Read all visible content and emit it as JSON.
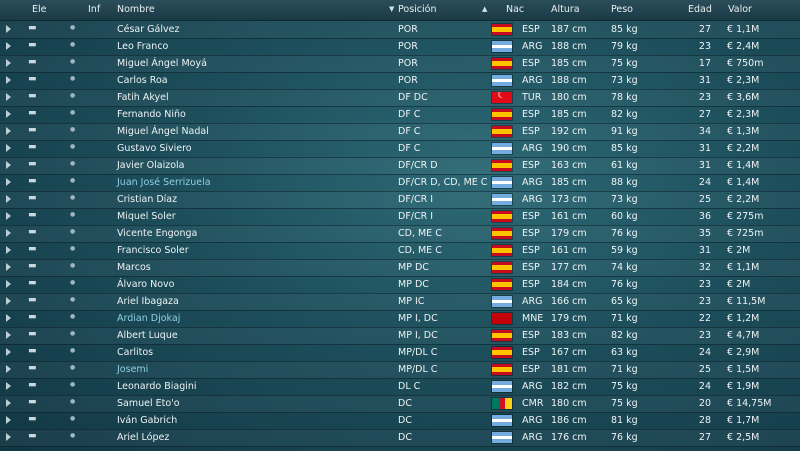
{
  "columns": {
    "ele": "Ele",
    "inf": "Inf",
    "nombre": "Nombre",
    "posicion": "Posición",
    "nac": "Nac",
    "altura": "Altura",
    "peso": "Peso",
    "edad": "Edad",
    "valor": "Valor"
  },
  "flag_colors": {
    "ESP": [
      "#c60b1e",
      "#ffc400",
      "#c60b1e"
    ],
    "ARG": [
      "#74acdf",
      "#ffffff",
      "#74acdf"
    ],
    "TUR": [
      "#e30a17"
    ],
    "MNE": [
      "#c40308"
    ],
    "CMR": [
      "#007a5e",
      "#ce1126",
      "#fcd116"
    ]
  },
  "players": [
    {
      "name": "César Gálvez",
      "pos": "POR",
      "nat": "ESP",
      "height": "187 cm",
      "weight": "85 kg",
      "age": "27",
      "value": "€ 1,1M",
      "highlight": false
    },
    {
      "name": "Leo Franco",
      "pos": "POR",
      "nat": "ARG",
      "height": "188 cm",
      "weight": "79 kg",
      "age": "23",
      "value": "€ 2,4M",
      "highlight": false
    },
    {
      "name": "Miguel Ángel Moyá",
      "pos": "POR",
      "nat": "ESP",
      "height": "185 cm",
      "weight": "75 kg",
      "age": "17",
      "value": "€ 750m",
      "highlight": false
    },
    {
      "name": "Carlos Roa",
      "pos": "POR",
      "nat": "ARG",
      "height": "188 cm",
      "weight": "73 kg",
      "age": "31",
      "value": "€ 2,3M",
      "highlight": false
    },
    {
      "name": "Fatih Akyel",
      "pos": "DF DC",
      "nat": "TUR",
      "height": "180 cm",
      "weight": "78 kg",
      "age": "23",
      "value": "€ 3,6M",
      "highlight": false
    },
    {
      "name": "Fernando Niño",
      "pos": "DF C",
      "nat": "ESP",
      "height": "185 cm",
      "weight": "82 kg",
      "age": "27",
      "value": "€ 2,3M",
      "highlight": false
    },
    {
      "name": "Miguel Ángel Nadal",
      "pos": "DF C",
      "nat": "ESP",
      "height": "192 cm",
      "weight": "91 kg",
      "age": "34",
      "value": "€ 1,3M",
      "highlight": false
    },
    {
      "name": "Gustavo Siviero",
      "pos": "DF C",
      "nat": "ARG",
      "height": "190 cm",
      "weight": "85 kg",
      "age": "31",
      "value": "€ 2,2M",
      "highlight": false
    },
    {
      "name": "Javier Olaizola",
      "pos": "DF/CR D",
      "nat": "ESP",
      "height": "163 cm",
      "weight": "61 kg",
      "age": "31",
      "value": "€ 1,4M",
      "highlight": false
    },
    {
      "name": "Juan José Serrizuela",
      "pos": "DF/CR D, CD, ME C",
      "nat": "ARG",
      "height": "185 cm",
      "weight": "88 kg",
      "age": "24",
      "value": "€ 1,4M",
      "highlight": true
    },
    {
      "name": "Cristian Díaz",
      "pos": "DF/CR I",
      "nat": "ARG",
      "height": "173 cm",
      "weight": "73 kg",
      "age": "25",
      "value": "€ 2,2M",
      "highlight": false
    },
    {
      "name": "Miquel Soler",
      "pos": "DF/CR I",
      "nat": "ESP",
      "height": "161 cm",
      "weight": "60 kg",
      "age": "36",
      "value": "€ 275m",
      "highlight": false
    },
    {
      "name": "Vicente Engonga",
      "pos": "CD, ME C",
      "nat": "ESP",
      "height": "179 cm",
      "weight": "76 kg",
      "age": "35",
      "value": "€ 725m",
      "highlight": false
    },
    {
      "name": "Francisco Soler",
      "pos": "CD, ME C",
      "nat": "ESP",
      "height": "161 cm",
      "weight": "59 kg",
      "age": "31",
      "value": "€ 2M",
      "highlight": false
    },
    {
      "name": "Marcos",
      "pos": "MP DC",
      "nat": "ESP",
      "height": "177 cm",
      "weight": "74 kg",
      "age": "32",
      "value": "€ 1,1M",
      "highlight": false
    },
    {
      "name": "Álvaro Novo",
      "pos": "MP DC",
      "nat": "ESP",
      "height": "184 cm",
      "weight": "76 kg",
      "age": "23",
      "value": "€ 2M",
      "highlight": false
    },
    {
      "name": "Ariel Ibagaza",
      "pos": "MP IC",
      "nat": "ARG",
      "height": "166 cm",
      "weight": "65 kg",
      "age": "23",
      "value": "€ 11,5M",
      "highlight": false
    },
    {
      "name": "Ardian Djokaj",
      "pos": "MP I, DC",
      "nat": "MNE",
      "height": "179 cm",
      "weight": "71 kg",
      "age": "22",
      "value": "€ 1,2M",
      "highlight": true
    },
    {
      "name": "Albert Luque",
      "pos": "MP I, DC",
      "nat": "ESP",
      "height": "183 cm",
      "weight": "82 kg",
      "age": "23",
      "value": "€ 4,7M",
      "highlight": false
    },
    {
      "name": "Carlitos",
      "pos": "MP/DL C",
      "nat": "ESP",
      "height": "167 cm",
      "weight": "63 kg",
      "age": "24",
      "value": "€ 2,9M",
      "highlight": false
    },
    {
      "name": "Josemi",
      "pos": "MP/DL C",
      "nat": "ESP",
      "height": "181 cm",
      "weight": "71 kg",
      "age": "25",
      "value": "€ 1,5M",
      "highlight": true
    },
    {
      "name": "Leonardo Biagini",
      "pos": "DL C",
      "nat": "ARG",
      "height": "182 cm",
      "weight": "75 kg",
      "age": "24",
      "value": "€ 1,9M",
      "highlight": false
    },
    {
      "name": "Samuel Eto'o",
      "pos": "DC",
      "nat": "CMR",
      "height": "180 cm",
      "weight": "75 kg",
      "age": "20",
      "value": "€ 14,75M",
      "highlight": false
    },
    {
      "name": "Iván Gabrich",
      "pos": "DC",
      "nat": "ARG",
      "height": "186 cm",
      "weight": "81 kg",
      "age": "28",
      "value": "€ 1,7M",
      "highlight": false
    },
    {
      "name": "Ariel López",
      "pos": "DC",
      "nat": "ARG",
      "height": "176 cm",
      "weight": "76 kg",
      "age": "27",
      "value": "€ 2,5M",
      "highlight": false
    }
  ]
}
